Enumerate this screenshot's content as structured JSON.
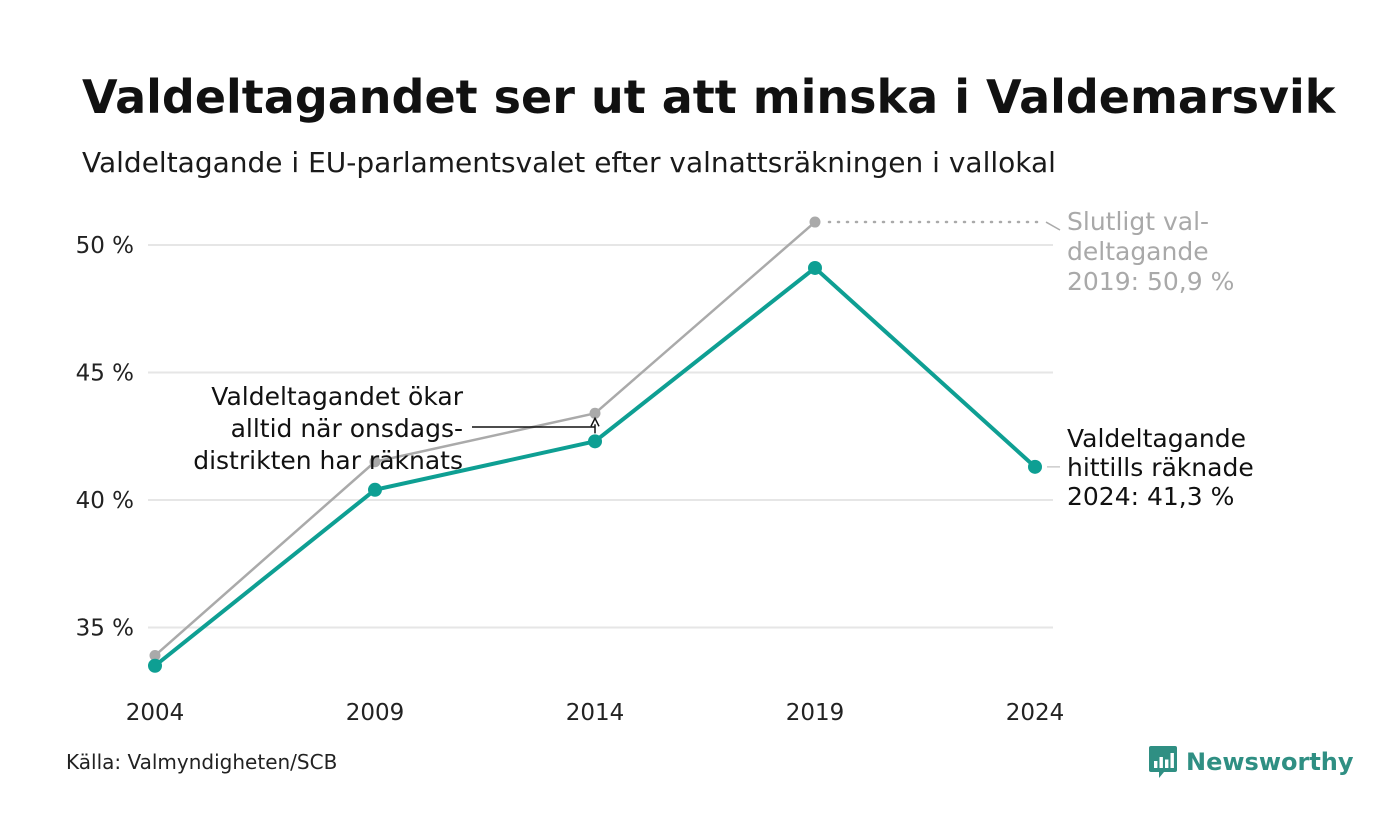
{
  "chart_data": {
    "type": "line",
    "title": "Valdeltagandet ser ut att minska i Valdemarsvik",
    "subtitle": "Valdeltagande i EU-parlamentsvalet efter valnattsräkningen i vallokal",
    "x": [
      2004,
      2009,
      2014,
      2019,
      2024
    ],
    "x_tick_labels": [
      "2004",
      "2009",
      "2014",
      "2019",
      "2024"
    ],
    "y_ticks": [
      35,
      40,
      45,
      50
    ],
    "y_tick_labels": [
      "35 %",
      "40 %",
      "45 %",
      "50 %"
    ],
    "ylim": [
      33.2,
      51.5
    ],
    "grid": true,
    "series": [
      {
        "key": "final",
        "color": "#aaaaaa",
        "values": [
          33.9,
          41.5,
          43.4,
          50.9,
          null
        ]
      },
      {
        "key": "election_night",
        "color": "#0e9f93",
        "values": [
          33.5,
          40.4,
          42.3,
          49.1,
          41.3
        ]
      }
    ],
    "annotations": {
      "final_2019": [
        "Slutligt val-",
        "deltagande",
        "2019: 50,9 %"
      ],
      "current_2024": [
        "Valdeltagande",
        "hittills räknade",
        "2024: 41,3 %"
      ],
      "wednesday": [
        "Valdeltagandet ökar",
        "alltid när onsdags-",
        "distrikten har räknats"
      ]
    }
  },
  "footer": {
    "source": "Källa: Valmyndigheten/SCB",
    "brand": "Newsworthy"
  },
  "colors": {
    "accent": "#0e9f93",
    "final": "#aaaaaa",
    "grid": "#e6e6e6",
    "brand": "#2f8f83"
  },
  "icons": {
    "brand_logo": "newsworthy-logo-icon"
  }
}
